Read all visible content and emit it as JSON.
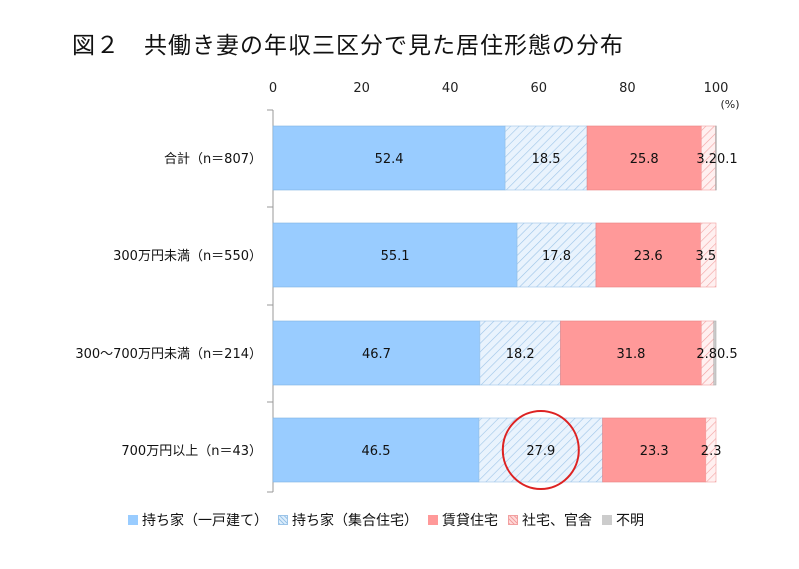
{
  "title": "図２　共働き妻の年収三区分で見た居住形態の分布",
  "chart_data": {
    "type": "bar",
    "orientation": "horizontal",
    "stacked": true,
    "unit_label": "(%)",
    "xlim": [
      0,
      100
    ],
    "xticks": [
      "0",
      "20",
      "40",
      "60",
      "80",
      "100"
    ],
    "grid": false,
    "legend_position": "bottom",
    "categories": [
      "合計（n＝807）",
      "300万円未満（n＝550）",
      "300～700万円未満（n＝214）",
      "700万円以上（n＝43）"
    ],
    "series": [
      {
        "name": "持ち家（一戸建て）",
        "color": "#99ccff",
        "pattern": "solid",
        "values": [
          52.4,
          55.1,
          46.7,
          46.5
        ],
        "labels": [
          "52.4",
          "55.1",
          "46.7",
          "46.5"
        ]
      },
      {
        "name": "持ち家（集合住宅）",
        "color": "#ddeefc",
        "pattern": "hatch",
        "values": [
          18.5,
          17.8,
          18.2,
          27.9
        ],
        "labels": [
          "18.5",
          "17.8",
          "18.2",
          "27.9"
        ]
      },
      {
        "name": "賃貸住宅",
        "color": "#ff9999",
        "pattern": "solid",
        "values": [
          25.8,
          23.6,
          31.8,
          23.3
        ],
        "labels": [
          "25.8",
          "23.6",
          "31.8",
          "23.3"
        ]
      },
      {
        "name": "社宅、官舎",
        "color": "#ffd9d9",
        "pattern": "hatch",
        "values": [
          3.2,
          3.5,
          2.8,
          2.3
        ],
        "labels": [
          "3.2",
          "3.5",
          "2.8",
          "2.3"
        ]
      },
      {
        "name": "不明",
        "color": "#cccccc",
        "pattern": "solid",
        "values": [
          0.1,
          0,
          0.5,
          0
        ],
        "labels": [
          "0.1",
          "",
          "0.5",
          ""
        ]
      }
    ],
    "annotation": {
      "type": "circle",
      "color": "#dd2222",
      "category_index": 3,
      "series_index": 1
    }
  }
}
